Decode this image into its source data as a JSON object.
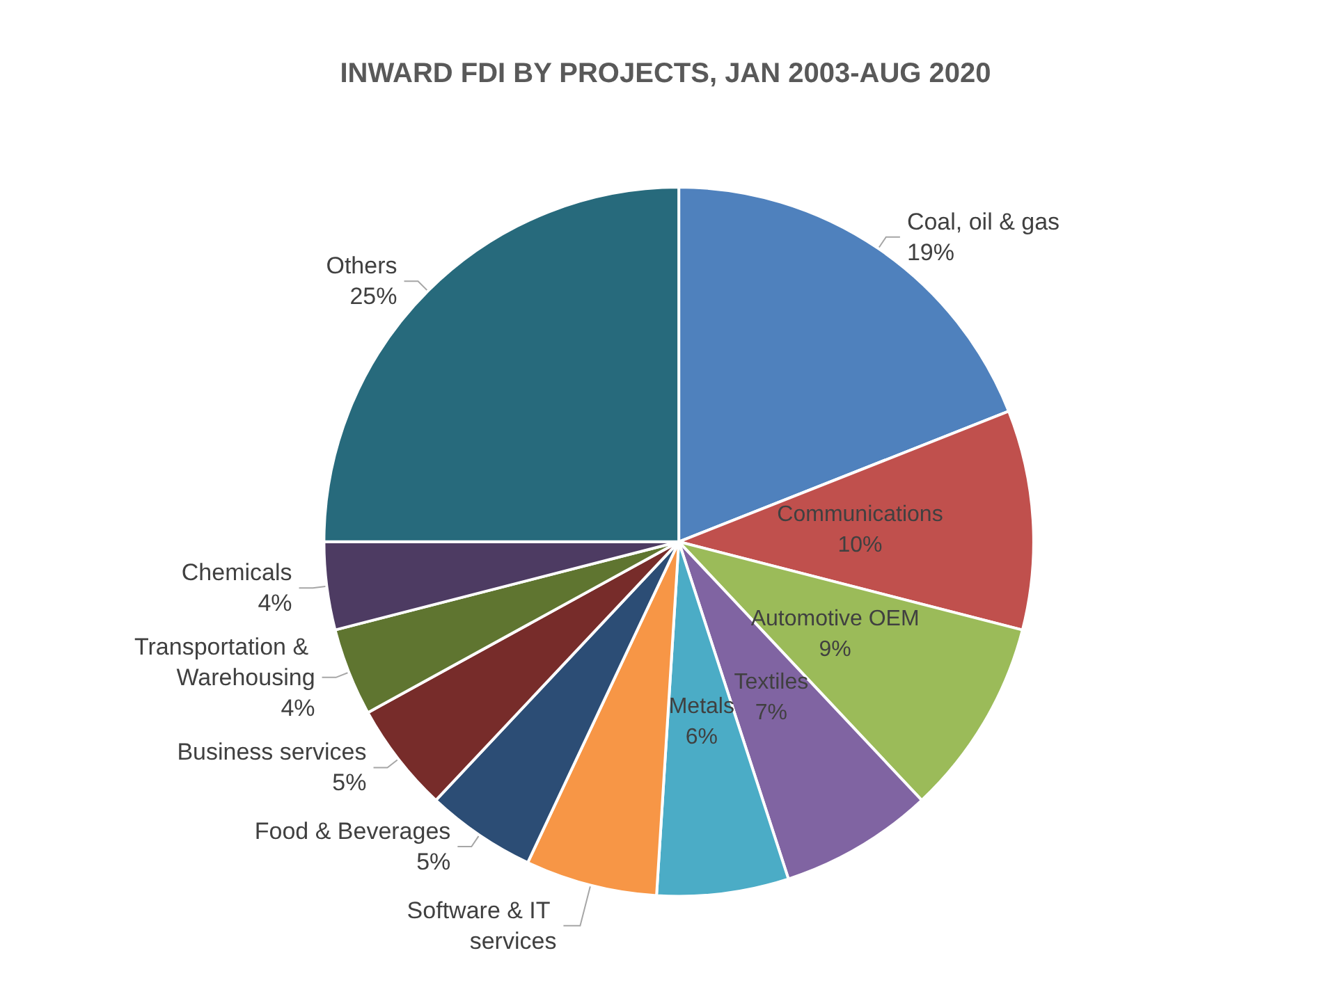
{
  "chart_data": {
    "type": "pie",
    "title": "INWARD FDI BY PROJECTS, JAN 2003-AUG 2020",
    "categories": [
      "Coal, oil & gas",
      "Communications",
      "Automotive OEM",
      "Textiles",
      "Metals",
      "Software & IT services",
      "Food & Beverages",
      "Business services",
      "Transportation & Warehousing",
      "Chemicals",
      "Others"
    ],
    "values": [
      19,
      10,
      9,
      7,
      6,
      6,
      5,
      5,
      4,
      4,
      25
    ],
    "colors": [
      "#4f81bd",
      "#c0504d",
      "#9bbb59",
      "#8064a2",
      "#4bacc6",
      "#f79646",
      "#2c4d75",
      "#772c2a",
      "#5f7530",
      "#4d3b62",
      "#276a7c"
    ],
    "value_labels": [
      "19%",
      "10%",
      "9%",
      "7%",
      "6%",
      null,
      "5%",
      "5%",
      "4%",
      "4%",
      "25%"
    ],
    "legend": false
  }
}
